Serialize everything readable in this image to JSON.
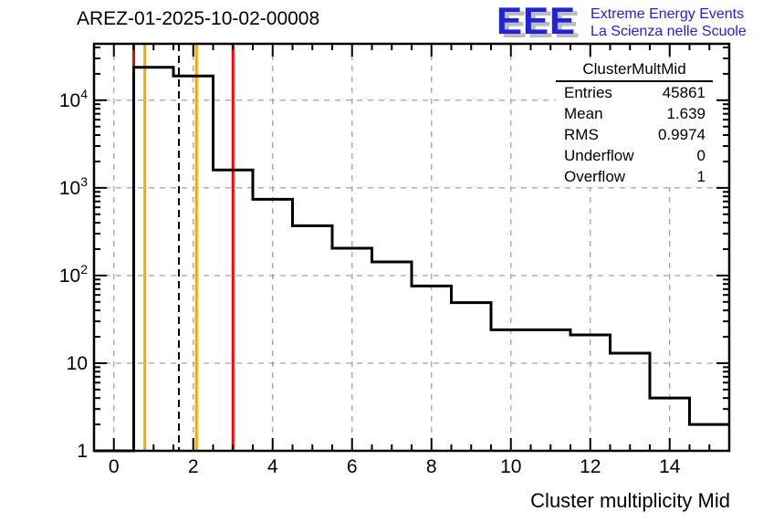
{
  "header": {
    "title": "AREZ-01-2025-10-02-00008"
  },
  "logo": {
    "acronym": "EEE",
    "line1": "Extreme Energy Events",
    "line2": "La Scienza nelle Scuole",
    "text_color": "#2222d6",
    "shadow_color": "#bcbcbc"
  },
  "stats": {
    "title": "ClusterMultMid",
    "rows": [
      {
        "label": "Entries",
        "value": "45861"
      },
      {
        "label": "Mean",
        "value": "1.639"
      },
      {
        "label": "RMS",
        "value": "0.9974"
      },
      {
        "label": "Underflow",
        "value": "0"
      },
      {
        "label": "Overflow",
        "value": "1"
      }
    ]
  },
  "chart_data": {
    "type": "bar",
    "title": "AREZ-01-2025-10-02-00008",
    "xlabel": "Cluster multiplicity Mid",
    "ylabel": "",
    "x_range": [
      -0.5,
      15.5
    ],
    "y_scale": "log",
    "y_range": [
      1,
      44000
    ],
    "bin_width": 1,
    "bin_centers": [
      0,
      1,
      2,
      3,
      4,
      5,
      6,
      7,
      8,
      9,
      10,
      11,
      12,
      13,
      14,
      15
    ],
    "counts": [
      0,
      23700,
      18900,
      1600,
      740,
      370,
      205,
      143,
      76,
      49,
      24,
      24,
      21,
      13,
      4,
      2
    ],
    "underflow": 0,
    "overflow": 1,
    "x_major_ticks": [
      0,
      2,
      4,
      6,
      8,
      10,
      12,
      14
    ],
    "x_minor_step": 0.5,
    "y_major_ticks": [
      1,
      10,
      100,
      1000,
      10000
    ],
    "grid": true,
    "grid_color": "#a8a8a8",
    "line_color": "#000000",
    "marker_lines": [
      {
        "x": 0.5,
        "color": "#ff0000",
        "style": "solid",
        "name": "red-marker-low"
      },
      {
        "x": 0.78,
        "color": "#ffa500",
        "style": "solid",
        "name": "orange-marker-low"
      },
      {
        "x": 1.639,
        "color": "#000000",
        "style": "dashed",
        "name": "mean-dashed-line"
      },
      {
        "x": 2.08,
        "color": "#ffa500",
        "style": "solid",
        "name": "orange-marker-high"
      },
      {
        "x": 3.0,
        "color": "#ff0000",
        "style": "solid",
        "name": "red-marker-high"
      }
    ]
  }
}
